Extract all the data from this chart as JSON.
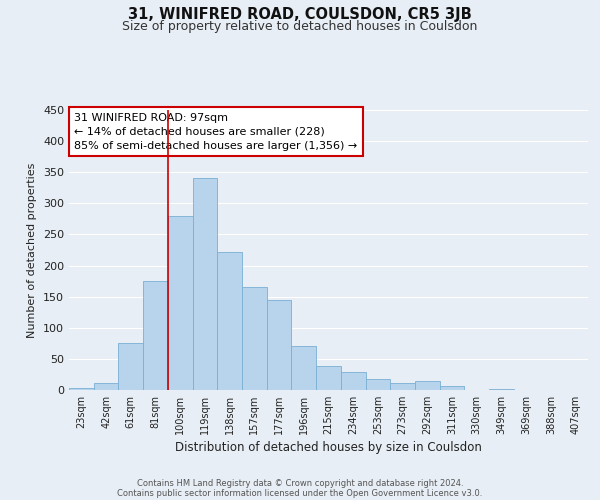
{
  "title": "31, WINIFRED ROAD, COULSDON, CR5 3JB",
  "subtitle": "Size of property relative to detached houses in Coulsdon",
  "xlabel": "Distribution of detached houses by size in Coulsdon",
  "ylabel": "Number of detached properties",
  "bar_labels": [
    "23sqm",
    "42sqm",
    "61sqm",
    "81sqm",
    "100sqm",
    "119sqm",
    "138sqm",
    "157sqm",
    "177sqm",
    "196sqm",
    "215sqm",
    "234sqm",
    "253sqm",
    "273sqm",
    "292sqm",
    "311sqm",
    "330sqm",
    "349sqm",
    "369sqm",
    "388sqm",
    "407sqm"
  ],
  "bar_values": [
    3,
    12,
    75,
    175,
    280,
    340,
    222,
    165,
    145,
    71,
    38,
    29,
    18,
    11,
    15,
    6,
    0,
    2,
    0,
    0,
    0
  ],
  "bar_color": "#b8d4ec",
  "bar_edge_color": "#7aafd4",
  "vline_x_index": 4,
  "vline_color": "#cc0000",
  "annotation_title": "31 WINIFRED ROAD: 97sqm",
  "annotation_line1": "← 14% of detached houses are smaller (228)",
  "annotation_line2": "85% of semi-detached houses are larger (1,356) →",
  "annotation_box_color": "#cc0000",
  "ylim": [
    0,
    450
  ],
  "yticks": [
    0,
    50,
    100,
    150,
    200,
    250,
    300,
    350,
    400,
    450
  ],
  "footer_line1": "Contains HM Land Registry data © Crown copyright and database right 2024.",
  "footer_line2": "Contains public sector information licensed under the Open Government Licence v3.0.",
  "bg_color": "#e8eef5",
  "grid_color": "#ffffff",
  "title_fontsize": 10.5,
  "subtitle_fontsize": 9,
  "ylabel_fontsize": 8,
  "xlabel_fontsize": 8.5,
  "tick_fontsize": 7,
  "footer_fontsize": 6,
  "ann_fontsize": 8
}
